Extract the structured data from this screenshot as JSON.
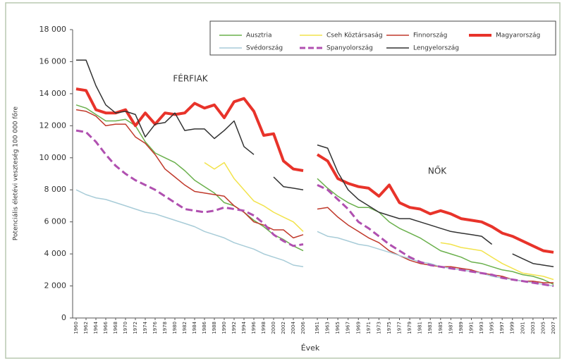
{
  "chart_data": [
    {
      "type": "line",
      "annotation": "FÉRFIAK",
      "ylabel": "Potenciális életévi veszteség 100 000 főre",
      "xlabel": "Évek",
      "x": [
        1960,
        1962,
        1964,
        1966,
        1968,
        1970,
        1972,
        1974,
        1976,
        1978,
        1980,
        1982,
        1984,
        1986,
        1988,
        1990,
        1992,
        1994,
        1996,
        1998,
        2000,
        2002,
        2004,
        2006
      ],
      "xlim": [
        1960,
        2006
      ],
      "ylim": [
        0,
        18000
      ],
      "yticks": [
        {
          "value": 0,
          "label": "0"
        },
        {
          "value": 2000,
          "label": "2 000"
        },
        {
          "value": 4000,
          "label": "4 000"
        },
        {
          "value": 6000,
          "label": "6 000"
        },
        {
          "value": 8000,
          "label": "8 000"
        },
        {
          "value": 10000,
          "label": "10 000"
        },
        {
          "value": 12000,
          "label": "12 000"
        },
        {
          "value": 14000,
          "label": "14 000"
        },
        {
          "value": 16000,
          "label": "16 000"
        },
        {
          "value": 18000,
          "label": "18 000"
        }
      ],
      "series": [
        {
          "name": "Ausztria",
          "color": "#6ab04c",
          "width": 1.5,
          "values": [
            13300,
            13100,
            12700,
            12300,
            12300,
            12400,
            12000,
            11000,
            10300,
            10000,
            9700,
            9200,
            8600,
            8200,
            7800,
            7200,
            7000,
            6600,
            6100,
            5700,
            5200,
            4900,
            4500,
            4200
          ]
        },
        {
          "name": "Cseh Köztársaság",
          "color": "#f2e34c",
          "width": 1.5,
          "values": [
            null,
            null,
            null,
            null,
            null,
            null,
            null,
            null,
            null,
            null,
            null,
            null,
            null,
            9700,
            9300,
            9700,
            8700,
            8000,
            7300,
            7000,
            6600,
            6300,
            6000,
            5400
          ]
        },
        {
          "name": "Finnország",
          "color": "#c0392b",
          "width": 1.5,
          "values": [
            13000,
            12900,
            12600,
            12000,
            12100,
            12100,
            11300,
            10900,
            10200,
            9300,
            8800,
            8300,
            7900,
            7800,
            7700,
            7600,
            7000,
            6600,
            6000,
            5800,
            5500,
            5500,
            5000,
            5200
          ]
        },
        {
          "name": "Magyarország",
          "color": "#e8332a",
          "width": 4,
          "values": [
            14300,
            14200,
            13000,
            12800,
            12800,
            13000,
            12000,
            12800,
            12100,
            12800,
            12700,
            12800,
            13400,
            13100,
            13300,
            12500,
            13500,
            13700,
            12900,
            11400,
            11500,
            9800,
            9300,
            9200
          ]
        },
        {
          "name": "Svédország",
          "color": "#a8ccd8",
          "width": 1.5,
          "values": [
            8000,
            7700,
            7500,
            7400,
            7200,
            7000,
            6800,
            6600,
            6500,
            6300,
            6100,
            5900,
            5700,
            5400,
            5200,
            5000,
            4700,
            4500,
            4300,
            4000,
            3800,
            3600,
            3300,
            3200
          ]
        },
        {
          "name": "Spanyolország",
          "color": "#b050b0",
          "width": 3,
          "dashed": true,
          "values": [
            11700,
            11600,
            11000,
            10200,
            9500,
            9000,
            8600,
            8300,
            8000,
            7600,
            7200,
            6800,
            6700,
            6600,
            6700,
            6900,
            6800,
            6700,
            6400,
            5900,
            5200,
            4800,
            4500,
            4600
          ]
        },
        {
          "name": "Lengyelország",
          "color": "#333333",
          "width": 1.5,
          "values": [
            16100,
            16100,
            14500,
            13300,
            12800,
            12900,
            12700,
            11300,
            12100,
            12200,
            12800,
            11700,
            11800,
            11800,
            11200,
            11700,
            12300,
            10700,
            10200,
            null,
            8800,
            8200,
            8100,
            8000
          ]
        }
      ]
    },
    {
      "type": "line",
      "annotation": "NŐK",
      "x": [
        1961,
        1963,
        1965,
        1967,
        1969,
        1971,
        1973,
        1975,
        1977,
        1979,
        1981,
        1983,
        1985,
        1987,
        1989,
        1991,
        1993,
        1995,
        1997,
        1999,
        2001,
        2003,
        2005,
        2007
      ],
      "xlim": [
        1961,
        2007
      ],
      "ylim": [
        0,
        18000
      ],
      "series": [
        {
          "color": "#6ab04c",
          "width": 1.5,
          "values": [
            8700,
            8100,
            7600,
            7200,
            6900,
            6900,
            6600,
            6000,
            5600,
            5300,
            5000,
            4600,
            4200,
            4000,
            3800,
            3500,
            3400,
            3200,
            3000,
            2900,
            2700,
            2600,
            2400,
            2100
          ]
        },
        {
          "color": "#f2e34c",
          "width": 1.5,
          "values": [
            null,
            null,
            null,
            null,
            null,
            null,
            null,
            null,
            null,
            null,
            null,
            null,
            4700,
            4600,
            4400,
            4300,
            4200,
            3800,
            3400,
            3100,
            2800,
            2700,
            2600,
            2400
          ]
        },
        {
          "color": "#c0392b",
          "width": 1.5,
          "values": [
            6800,
            6900,
            6300,
            5800,
            5400,
            5000,
            4700,
            4200,
            3900,
            3600,
            3400,
            3300,
            3200,
            3200,
            3100,
            3000,
            2800,
            2700,
            2600,
            2400,
            2300,
            2300,
            2200,
            2200
          ]
        },
        {
          "color": "#e8332a",
          "width": 4,
          "values": [
            10200,
            9800,
            8700,
            8400,
            8200,
            8100,
            7600,
            8300,
            7200,
            6900,
            6800,
            6500,
            6700,
            6500,
            6200,
            6100,
            6000,
            5700,
            5300,
            5100,
            4800,
            4500,
            4200,
            4100
          ]
        },
        {
          "color": "#a8ccd8",
          "width": 1.5,
          "values": [
            5400,
            5100,
            5000,
            4800,
            4600,
            4500,
            4300,
            4100,
            3900,
            3700,
            3500,
            3400,
            3200,
            3100,
            3000,
            2900,
            2800,
            2600,
            2500,
            2400,
            2300,
            2200,
            2100,
            2000
          ]
        },
        {
          "color": "#b050b0",
          "width": 3,
          "dashed": true,
          "values": [
            8300,
            8000,
            7400,
            6800,
            6000,
            5600,
            5100,
            4600,
            4200,
            3800,
            3500,
            3300,
            3200,
            3100,
            3000,
            2900,
            2800,
            2700,
            2500,
            2400,
            2300,
            2200,
            2100,
            2000
          ]
        },
        {
          "color": "#333333",
          "width": 1.5,
          "values": [
            10800,
            10600,
            9100,
            8000,
            7400,
            7000,
            6600,
            6400,
            6200,
            6200,
            6000,
            5800,
            5600,
            5400,
            5300,
            5200,
            5100,
            4600,
            null,
            4000,
            3700,
            3400,
            3300,
            3200
          ]
        }
      ]
    }
  ]
}
